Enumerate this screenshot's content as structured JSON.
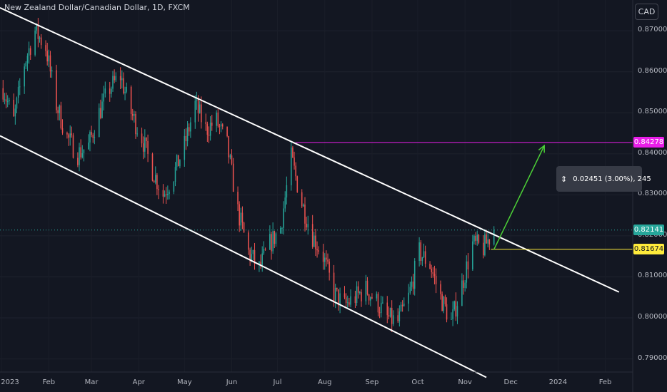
{
  "header": {
    "title": "New Zealand Dollar/Canadian Dollar, 1D, FXCM",
    "currency": "CAD"
  },
  "colors": {
    "background": "#131722",
    "up_candle": "#26a69a",
    "down_candle": "#ef5350",
    "channel_line": "#ffffff",
    "target_line": "#e91ee9",
    "entry_line": "#ffeb3b",
    "arrow": "#4cd137",
    "last_price": "#26a69a"
  },
  "price_labels": {
    "target": "0.84278",
    "last": "0.82141",
    "entry": "0.81674"
  },
  "measure": {
    "text": "0.02451 (3.00%), 245"
  },
  "chart_data": {
    "type": "candlestick",
    "title": "New Zealand Dollar/Canadian Dollar, 1D, FXCM",
    "y_ticks": [
      "0.87000",
      "0.86000",
      "0.85000",
      "0.84000",
      "0.83000",
      "0.82000",
      "0.81000",
      "0.80000",
      "0.79000"
    ],
    "y_tick_values": [
      0.87,
      0.86,
      0.85,
      0.84,
      0.83,
      0.82,
      0.81,
      0.8,
      0.79
    ],
    "ylim": [
      0.7868,
      0.8775
    ],
    "x_ticks": [
      "2023",
      "Feb",
      "Mar",
      "Apr",
      "May",
      "Jun",
      "Jul",
      "Aug",
      "Sep",
      "Oct",
      "Nov",
      "Dec",
      "2024",
      "Feb"
    ],
    "x_tick_dates": [
      "2023-01-01",
      "2023-02-01",
      "2023-03-01",
      "2023-04-01",
      "2023-05-01",
      "2023-06-01",
      "2023-07-01",
      "2023-08-01",
      "2023-09-01",
      "2023-10-01",
      "2023-11-01",
      "2023-12-01",
      "2024-01-01",
      "2024-02-01"
    ],
    "xlim": [
      "2022-12-31",
      "2024-02-19"
    ],
    "close_path": [
      [
        "2023-01-02",
        0.856
      ],
      [
        "2023-01-09",
        0.848
      ],
      [
        "2023-01-16",
        0.862
      ],
      [
        "2023-01-23",
        0.87
      ],
      [
        "2023-01-30",
        0.866
      ],
      [
        "2023-02-06",
        0.852
      ],
      [
        "2023-02-13",
        0.844
      ],
      [
        "2023-02-20",
        0.84
      ],
      [
        "2023-02-27",
        0.842
      ],
      [
        "2023-03-06",
        0.85
      ],
      [
        "2023-03-13",
        0.856
      ],
      [
        "2023-03-20",
        0.859
      ],
      [
        "2023-03-27",
        0.85
      ],
      [
        "2023-04-03",
        0.844
      ],
      [
        "2023-04-10",
        0.836
      ],
      [
        "2023-04-17",
        0.83
      ],
      [
        "2023-04-24",
        0.835
      ],
      [
        "2023-05-01",
        0.842
      ],
      [
        "2023-05-08",
        0.852
      ],
      [
        "2023-05-15",
        0.846
      ],
      [
        "2023-05-22",
        0.848
      ],
      [
        "2023-05-29",
        0.842
      ],
      [
        "2023-06-05",
        0.826
      ],
      [
        "2023-06-12",
        0.816
      ],
      [
        "2023-06-19",
        0.812
      ],
      [
        "2023-06-26",
        0.818
      ],
      [
        "2023-07-03",
        0.822
      ],
      [
        "2023-07-10",
        0.839
      ],
      [
        "2023-07-17",
        0.828
      ],
      [
        "2023-07-24",
        0.82
      ],
      [
        "2023-07-31",
        0.815
      ],
      [
        "2023-08-07",
        0.806
      ],
      [
        "2023-08-14",
        0.803
      ],
      [
        "2023-08-21",
        0.805
      ],
      [
        "2023-08-28",
        0.807
      ],
      [
        "2023-09-04",
        0.804
      ],
      [
        "2023-09-11",
        0.8
      ],
      [
        "2023-09-18",
        0.799
      ],
      [
        "2023-09-25",
        0.805
      ],
      [
        "2023-10-02",
        0.816
      ],
      [
        "2023-10-09",
        0.813
      ],
      [
        "2023-10-16",
        0.805
      ],
      [
        "2023-10-23",
        0.799
      ],
      [
        "2023-10-30",
        0.808
      ],
      [
        "2023-11-06",
        0.818
      ],
      [
        "2023-11-13",
        0.817
      ],
      [
        "2023-11-20",
        0.8214
      ]
    ],
    "channel_upper": [
      [
        "2022-12-31",
        0.8756
      ],
      [
        "2024-02-10",
        0.8063
      ]
    ],
    "channel_lower": [
      [
        "2022-12-31",
        0.8444
      ],
      [
        "2023-11-15",
        0.7855
      ]
    ],
    "target_line": {
      "value": 0.84278,
      "from": "2023-07-13"
    },
    "entry_line": {
      "value": 0.81674,
      "from": "2023-11-18"
    },
    "arrow": {
      "from": [
        "2023-11-20",
        0.8167
      ],
      "to": [
        "2023-12-23",
        0.842
      ]
    },
    "last_price": 0.82141
  }
}
